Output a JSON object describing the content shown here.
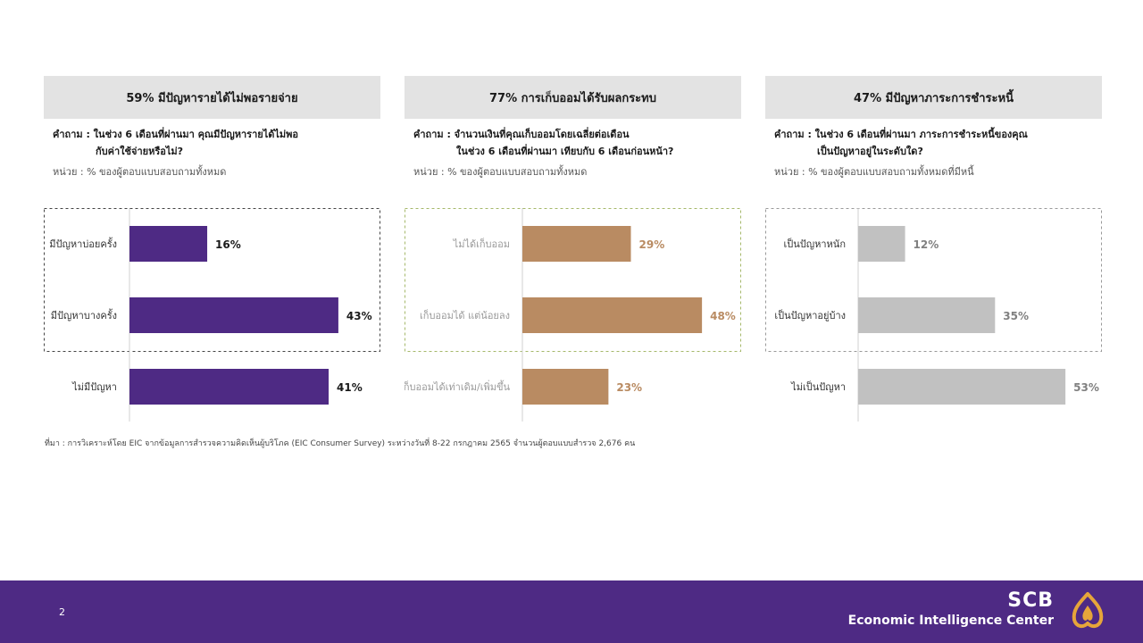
{
  "colors": {
    "purple": "#4e2a84",
    "tan": "#b98b62",
    "gray": "#c1c1c1",
    "footer_bg": "#4e2a84",
    "logo_gold": "#e6a53a"
  },
  "panels": [
    {
      "header": "59% มีปัญหารายได้ไม่พอรายจ่าย",
      "question_line1": "คำถาม : ในช่วง 6 เดือนที่ผ่านมา คุณมีปัญหารายได้ไม่พอ",
      "question_line2": "กับค่าใช้จ่ายหรือไม่?",
      "unit": "หน่วย : % ของผู้ตอบแบบสอบถามทั้งหมด"
    },
    {
      "header": "77% การเก็บออมได้รับผลกระทบ",
      "question_line1": "คำถาม : จำนวนเงินที่คุณเก็บออมโดยเฉลี่ยต่อเดือน",
      "question_line2": "ในช่วง 6 เดือนที่ผ่านมา เทียบกับ 6 เดือนก่อนหน้า?",
      "unit": "หน่วย : % ของผู้ตอบแบบสอบถามทั้งหมด"
    },
    {
      "header": "47% มีปัญหาภาระการชำระหนี้",
      "question_line1": "คำถาม : ในช่วง 6 เดือนที่ผ่านมา ภาระการชำระหนี้ของคุณ",
      "question_line2": "เป็นปัญหาอยู่ในระดับใด?",
      "unit": "หน่วย : % ของผู้ตอบแบบสอบถามทั้งหมดที่มีหนี้"
    }
  ],
  "chart_data": [
    {
      "type": "bar",
      "orientation": "horizontal",
      "categories": [
        "มีปัญหาบ่อยครั้ง",
        "มีปัญหาบางครั้ง",
        "ไม่มีปัญหา"
      ],
      "values": [
        16,
        43,
        41
      ],
      "value_labels": [
        "16%",
        "43%",
        "41%"
      ],
      "xlim": [
        0,
        60
      ],
      "bar_color": "#4e2a84",
      "label_color": "#1a1a1a",
      "category_color": "#333333",
      "box_color": "#444444",
      "highlight_count": 2
    },
    {
      "type": "bar",
      "orientation": "horizontal",
      "categories": [
        "ไม่ได้เก็บออม",
        "เก็บออมได้ แต่น้อยลง",
        "เก็บออมได้เท่าเดิม/เพิ่มขึ้น"
      ],
      "values": [
        29,
        48,
        23
      ],
      "value_labels": [
        "29%",
        "48%",
        "23%"
      ],
      "xlim": [
        0,
        60
      ],
      "bar_color": "#b98b62",
      "label_color": "#b98b62",
      "category_color": "#999999",
      "box_color": "#a5b86a",
      "highlight_count": 2
    },
    {
      "type": "bar",
      "orientation": "horizontal",
      "categories": [
        "เป็นปัญหาหนัก",
        "เป็นปัญหาอยู่บ้าง",
        "ไม่เป็นปัญหา"
      ],
      "values": [
        12,
        35,
        53
      ],
      "value_labels": [
        "12%",
        "35%",
        "53%"
      ],
      "xlim": [
        0,
        60
      ],
      "bar_color": "#c1c1c1",
      "label_color": "#808080",
      "category_color": "#333333",
      "box_color": "#999999",
      "highlight_count": 2
    }
  ],
  "footnote": "ที่มา : การวิเคราะห์โดย EIC จากข้อมูลการสำรวจความคิดเห็นผู้บริโภค (EIC Consumer Survey) ระหว่างวันที่ 8-22 กรกฎาคม 2565 จำนวนผู้ตอบแบบสำรวจ 2,676 คน",
  "footer": {
    "page_number": "2",
    "brand_name": "SCB",
    "brand_subtitle": "Economic Intelligence Center",
    "logo_icon": "scb-lotus-logo"
  }
}
